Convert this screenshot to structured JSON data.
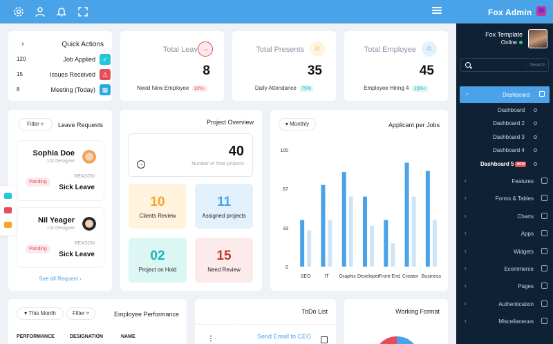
{
  "brand": {
    "name": "Fox Admin"
  },
  "profile": {
    "name": "Fox Template",
    "status": "Online"
  },
  "sidebar_search": {
    "placeholder": "...Search"
  },
  "sidebar": {
    "active": "Dashboard",
    "subitems": [
      "Dashboard",
      "Dashboard 2",
      "Dashboard 3",
      "Dashboard 4",
      "Dashboard 5"
    ],
    "new_badge": "NEW",
    "items": [
      "Features",
      "Forms & Tables",
      "Charts",
      "Apps",
      "Widgets",
      "Ecommerce",
      "Pages",
      "Authentication",
      "Miscellaneous"
    ]
  },
  "quick_actions": {
    "title": "Quick Actions",
    "rows": [
      {
        "num": "120",
        "label": "Job Applied",
        "icon": "check-icon",
        "color": "#26c6da"
      },
      {
        "num": "15",
        "label": "Issues Received",
        "icon": "warning-icon",
        "color": "#e74c5a"
      },
      {
        "num": "8",
        "label": "Meeting (Today)",
        "icon": "calendar-icon",
        "color": "#29a8e0"
      }
    ]
  },
  "stats": [
    {
      "title": "Total Leave",
      "value": "8",
      "foot": "Need New Employee",
      "pct": "10%-",
      "icon": "arrow-circle-icon",
      "color": "#e74c5a",
      "bg": "#fde9ec"
    },
    {
      "title": "Total Presents",
      "value": "35",
      "foot": "Daily Attendance",
      "pct": "75%",
      "icon": "user-icon",
      "color": "#f5a623",
      "bg": "#fff3dd"
    },
    {
      "title": "Total Employee",
      "value": "45",
      "foot": "Employee Hiring 4",
      "pct": "15%+",
      "icon": "user-icon",
      "color": "#4aa3e8",
      "bg": "#e3f1fc"
    }
  ],
  "leave_requests": {
    "filter": "Filter",
    "title": "Leave Requests",
    "items": [
      {
        "name": "Sophia Doe",
        "role": "UX Designer",
        "reason_label": "REASON",
        "reason": "Sick Leave",
        "status": "Panding"
      },
      {
        "name": "Nil Yeager",
        "role": "UX Designer",
        "reason_label": "REASON",
        "reason": "Sick Leave",
        "status": "Panding"
      }
    ],
    "see_all": "See all Request"
  },
  "project_overview": {
    "title": "Project Overview",
    "total": "40",
    "total_label": "Number of Total projects",
    "tiles": [
      {
        "value": "10",
        "label": "Clients Review",
        "color": "#f5a623",
        "bg": "#fff3dd"
      },
      {
        "value": "11",
        "label": "Assigned projects",
        "color": "#4aa3e8",
        "bg": "#e3f1fc"
      },
      {
        "value": "02",
        "label": "Project on Hold",
        "color": "#19b5b0",
        "bg": "#dcf6f4"
      },
      {
        "value": "15",
        "label": "Need Review",
        "color": "#c0392b",
        "bg": "#fdeaea"
      }
    ]
  },
  "applicants": {
    "filter": "Monthly",
    "title": "Applicant per Jobs"
  },
  "chart_data": {
    "type": "bar",
    "title": "Applicant per Jobs",
    "categories": [
      "SEO",
      "IT",
      "Graphic",
      "Developer",
      "Front-End",
      "Creator",
      "Business"
    ],
    "yticks": [
      0,
      33,
      67,
      100
    ],
    "ylim": [
      0,
      100
    ],
    "series": [
      {
        "color": "#4aa3e8",
        "values": [
          40,
          70,
          81,
          60,
          40,
          89,
          82
        ]
      },
      {
        "color": "#cfe5f7",
        "values": [
          31,
          40,
          60,
          35,
          20,
          60,
          40
        ]
      }
    ]
  },
  "employee_performance": {
    "filter_month": "This Month",
    "filter": "Filter",
    "title": "Employee Performance",
    "headers": [
      "PERFORMANCE",
      "DESIGNATION",
      "NAME"
    ]
  },
  "todo": {
    "title": "ToDo List",
    "item": "Send Email to CEO"
  },
  "working_format": {
    "title": "Working Format"
  },
  "colors": {
    "primary": "#4aa3e8",
    "sidebar": "#0f2235",
    "background": "#eef2f7"
  }
}
